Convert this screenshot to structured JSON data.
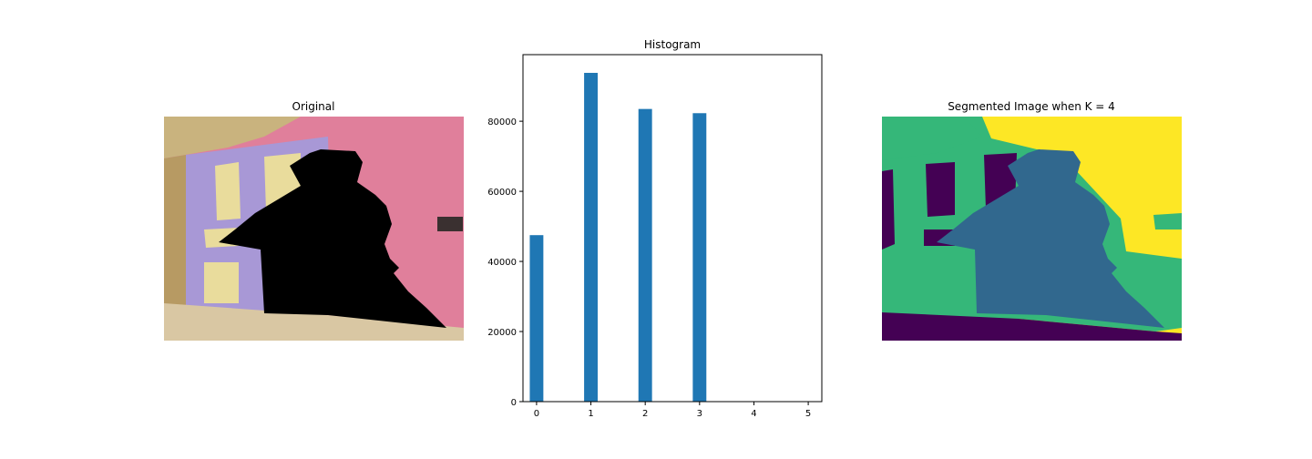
{
  "titles": {
    "original": "Original",
    "histogram": "Histogram",
    "segmented": "Segmented Image when K = 4"
  },
  "colors": {
    "bar": "#1f77b4",
    "viridis_k4": [
      "#440154",
      "#31688e",
      "#35b779",
      "#fde725"
    ],
    "original_wall": "#e07f9b",
    "original_door": "#a898d6",
    "original_panel": "#e9dc9c",
    "original_floor": "#d9c7a3",
    "silhouette": "#000000"
  },
  "chart_data": [
    {
      "type": "image",
      "title": "Original"
    },
    {
      "type": "bar",
      "title": "Histogram",
      "x": [
        0,
        1,
        2,
        3
      ],
      "values": [
        47500,
        93800,
        83500,
        82300
      ],
      "xticks": [
        "0",
        "1",
        "2",
        "3",
        "4",
        "5"
      ],
      "yticks": [
        "0",
        "20000",
        "40000",
        "60000",
        "80000"
      ],
      "xlim": [
        -0.25,
        5.25
      ],
      "ylim": [
        0,
        99000
      ],
      "grid": false
    },
    {
      "type": "image",
      "title": "Segmented Image when K = 4",
      "colormap": "viridis"
    }
  ]
}
